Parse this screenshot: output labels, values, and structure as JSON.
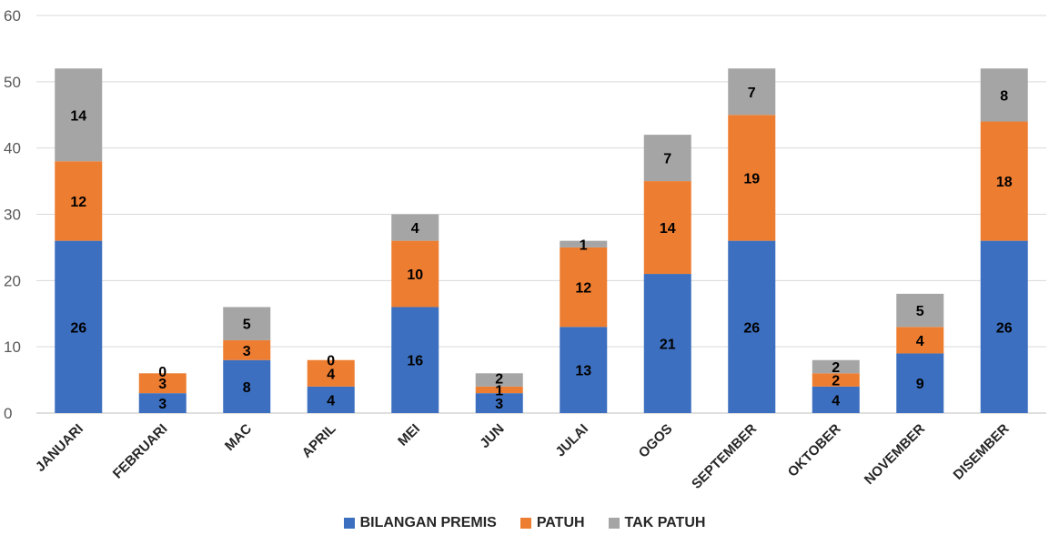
{
  "chart_data": {
    "type": "bar",
    "stacked": true,
    "categories": [
      "JANUARI",
      "FEBRUARI",
      "MAC",
      "APRIL",
      "MEI",
      "JUN",
      "JULAI",
      "OGOS",
      "SEPTEMBER",
      "OKTOBER",
      "NOVEMBER",
      "DISEMBER"
    ],
    "series": [
      {
        "name": "BILANGAN PREMIS",
        "color": "#3C6FBF",
        "values": [
          26,
          3,
          8,
          4,
          16,
          3,
          13,
          21,
          26,
          4,
          9,
          26
        ]
      },
      {
        "name": "PATUH",
        "color": "#ED7D31",
        "values": [
          12,
          3,
          3,
          4,
          10,
          1,
          12,
          14,
          19,
          2,
          4,
          18
        ]
      },
      {
        "name": "TAK PATUH",
        "color": "#A5A5A5",
        "values": [
          14,
          0,
          5,
          0,
          4,
          2,
          1,
          7,
          7,
          2,
          5,
          8
        ]
      }
    ],
    "ylim": [
      0,
      60
    ],
    "yticks": [
      "0",
      "10",
      "20",
      "30",
      "40",
      "50",
      "60"
    ],
    "grid": true,
    "legend_position": "bottom"
  }
}
